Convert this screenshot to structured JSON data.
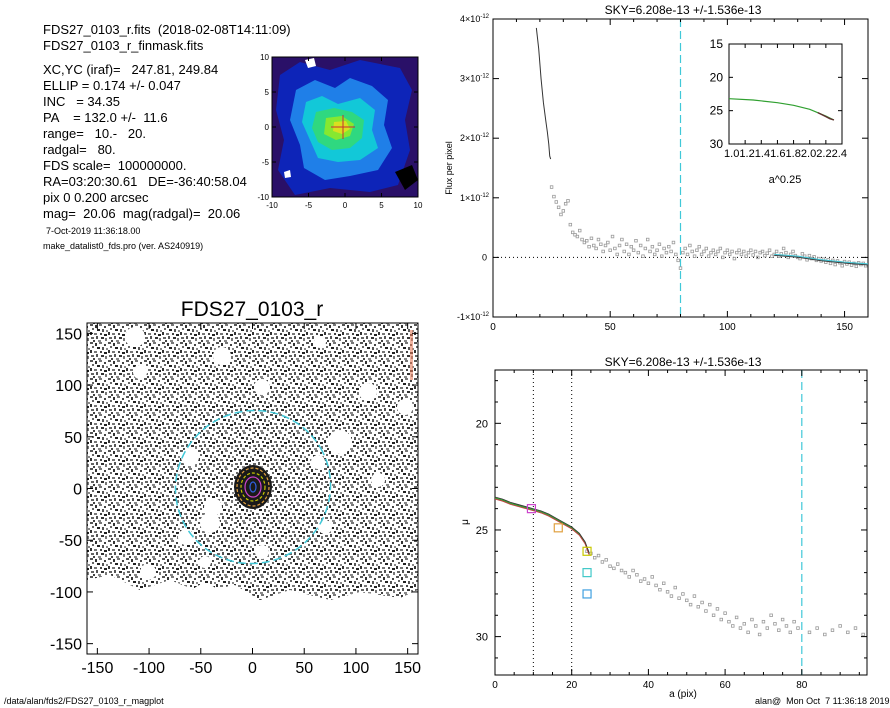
{
  "header": {
    "lines": [
      "FDS27_0103_r.fits  (2018-02-08T14:11:09)",
      "FDS27_0103_r_finmask.fits",
      "XC,YC (iraf)=   247.81, 249.84",
      "ELLIP = 0.174 +/- 0.047",
      "INC   = 34.35",
      "PA    = 132.0 +/-  11.6",
      "range=   10.-   20.",
      "radgal=   80.",
      "FDS scale=  100000000.",
      "RA=03:20:30.61   DE=-36:40:58.04",
      "pix 0 0.200 arcsec",
      "mag=  20.06  mag(radgal)=  20.06"
    ],
    "date": "7-Oct-2019 11:36:18.00",
    "program": "make_datalist0_fds.pro (ver. AS240919)"
  },
  "footer": {
    "path": "/data/alan/fds2/FDS27_0103_r_magplot",
    "user": "alan@  Mon Oct  7 11:36:18 2019"
  },
  "chart_data": [
    {
      "id": "thumbnail",
      "type": "heatmap",
      "x_ticks": [
        "-10",
        "-5",
        "0",
        "5",
        "10"
      ],
      "y_ticks": [
        "-10",
        "-5",
        "0",
        "5",
        "10"
      ],
      "xlim": [
        -10,
        10
      ],
      "ylim": [
        -10,
        10
      ]
    },
    {
      "id": "mask_image",
      "type": "heatmap",
      "title": "FDS27_0103_r",
      "x_ticks": [
        "-150",
        "-100",
        "-50",
        "0",
        "50",
        "100",
        "150"
      ],
      "y_ticks": [
        "-150",
        "-100",
        "-50",
        "0",
        "50",
        "100",
        "150"
      ],
      "xlim": [
        -160,
        160
      ],
      "ylim": [
        -160,
        160
      ],
      "radgal_circle_radius": 80
    },
    {
      "id": "flux_profile",
      "type": "scatter",
      "title": "SKY=6.208e-13 +/-1.536e-13",
      "xlabel": "",
      "ylabel": "Flux per pixel",
      "xlim": [
        0,
        160
      ],
      "ylim": [
        -1e-12,
        4e-12
      ],
      "x_ticks": [
        "0",
        "50",
        "100",
        "150"
      ],
      "y_ticks": [
        {
          "mant": "4",
          "exp": "-12",
          "value": 4e-12
        },
        {
          "mant": "3",
          "exp": "-12",
          "value": 3e-12
        },
        {
          "mant": "2",
          "exp": "-12",
          "value": 2e-12
        },
        {
          "mant": "1",
          "exp": "-12",
          "value": 1e-12
        },
        {
          "mant": "0",
          "exp": "",
          "value": 0
        },
        {
          "mant": "-1",
          "exp": "-12",
          "value": -1e-12
        }
      ],
      "vline_x": 80,
      "line": [
        [
          18.5,
          3.85e-12
        ],
        [
          19.5,
          3.5e-12
        ],
        [
          20.5,
          3e-12
        ],
        [
          21.5,
          2.6e-12
        ],
        [
          22.5,
          2.3e-12
        ],
        [
          23.2,
          2.1e-12
        ],
        [
          23.8,
          1.9e-12
        ],
        [
          24.2,
          1.7e-12
        ],
        [
          24.6,
          1.65e-12
        ]
      ],
      "points": [
        [
          25,
          1.18e-12
        ],
        [
          26,
          1.02e-12
        ],
        [
          27,
          9.3e-13
        ],
        [
          28,
          8.4e-13
        ],
        [
          29,
          7.2e-13
        ],
        [
          30,
          7.8e-13
        ],
        [
          31,
          9e-13
        ],
        [
          32,
          9.5e-13
        ],
        [
          33,
          5.5e-13
        ],
        [
          34,
          4.2e-13
        ],
        [
          35,
          3.8e-13
        ],
        [
          36,
          3.5e-13
        ],
        [
          37,
          4.5e-13
        ],
        [
          38,
          3e-13
        ],
        [
          39,
          2.5e-13
        ],
        [
          40,
          2.8e-13
        ],
        [
          41,
          1.8e-13
        ],
        [
          42,
          3.2e-13
        ],
        [
          43,
          2e-13
        ],
        [
          44,
          1.5e-13
        ],
        [
          45,
          3e-13
        ],
        [
          46,
          2.2e-13
        ],
        [
          47,
          1e-13
        ],
        [
          48,
          2e-13
        ],
        [
          49,
          2.5e-13
        ],
        [
          50,
          1.2e-13
        ],
        [
          51,
          3.5e-13
        ],
        [
          52,
          1.5e-13
        ],
        [
          53,
          5e-14
        ],
        [
          54,
          2e-13
        ],
        [
          55,
          3e-13
        ],
        [
          56,
          1e-13
        ],
        [
          57,
          2.2e-13
        ],
        [
          58,
          5e-14
        ],
        [
          59,
          1.8e-13
        ],
        [
          60,
          1.2e-13
        ],
        [
          61,
          2.8e-13
        ],
        [
          62,
          8e-14
        ],
        [
          63,
          2e-13
        ],
        [
          64,
          2e-14
        ],
        [
          65,
          1.5e-13
        ],
        [
          66,
          3e-13
        ],
        [
          67,
          1e-13
        ],
        [
          68,
          1.8e-13
        ],
        [
          69,
          5e-14
        ],
        [
          70,
          1.2e-13
        ],
        [
          71,
          2.2e-13
        ],
        [
          72,
          2e-14
        ],
        [
          73,
          1.5e-13
        ],
        [
          74,
          8e-14
        ],
        [
          75,
          1.8e-13
        ],
        [
          76,
          1e-13
        ],
        [
          77,
          2.5e-13
        ],
        [
          78,
          5e-14
        ],
        [
          79,
          -5e-14
        ],
        [
          80,
          -1.8e-13
        ],
        [
          81,
          8e-14
        ],
        [
          82,
          1.5e-13
        ],
        [
          83,
          5e-14
        ],
        [
          84,
          2e-13
        ],
        [
          85,
          1e-13
        ],
        [
          86,
          2e-14
        ],
        [
          87,
          1.2e-13
        ],
        [
          88,
          1.8e-13
        ],
        [
          89,
          5e-14
        ],
        [
          90,
          1e-13
        ],
        [
          91,
          1.5e-13
        ],
        [
          92,
          2e-14
        ],
        [
          93,
          8e-14
        ],
        [
          94,
          1.2e-13
        ],
        [
          95,
          5e-14
        ],
        [
          96,
          1e-13
        ],
        [
          97,
          1.5e-13
        ],
        [
          98,
          0.0
        ],
        [
          99,
          8e-14
        ],
        [
          100,
          1.2e-13
        ],
        [
          101,
          5e-14
        ],
        [
          102,
          1e-13
        ],
        [
          103,
          -2e-14
        ],
        [
          104,
          8e-14
        ],
        [
          105,
          1.2e-13
        ],
        [
          106,
          5e-14
        ],
        [
          107,
          1e-13
        ],
        [
          108,
          2e-14
        ],
        [
          109,
          8e-14
        ],
        [
          110,
          1.2e-13
        ],
        [
          111,
          4e-14
        ],
        [
          112,
          1e-13
        ],
        [
          113,
          0.0
        ],
        [
          114,
          8e-14
        ],
        [
          115,
          1e-13
        ],
        [
          116,
          3e-14
        ],
        [
          117,
          7e-14
        ],
        [
          118,
          1.2e-13
        ],
        [
          119,
          2e-14
        ],
        [
          120,
          5e-14
        ],
        [
          121,
          1e-13
        ],
        [
          122,
          2e-14
        ],
        [
          123,
          6e-14
        ],
        [
          124,
          1.5e-13
        ],
        [
          125,
          8e-14
        ],
        [
          126,
          0.0
        ],
        [
          127,
          5e-14
        ],
        [
          128,
          1e-13
        ],
        [
          129,
          3e-14
        ],
        [
          130,
          0.0
        ],
        [
          131,
          -2e-14
        ],
        [
          132,
          6e-14
        ],
        [
          133,
          2e-14
        ],
        [
          134,
          -4e-14
        ],
        [
          135,
          3e-14
        ],
        [
          136,
          -2e-14
        ],
        [
          137,
          1e-14
        ],
        [
          138,
          -5e-14
        ],
        [
          139,
          -2e-14
        ],
        [
          140,
          -6e-14
        ],
        [
          141,
          -3e-14
        ],
        [
          142,
          -8e-14
        ],
        [
          143,
          -4e-14
        ],
        [
          144,
          -1e-13
        ],
        [
          145,
          -5e-14
        ],
        [
          146,
          -1.2e-13
        ],
        [
          147,
          -6e-14
        ],
        [
          148,
          -9e-14
        ],
        [
          149,
          -1.4e-13
        ],
        [
          150,
          -7e-14
        ],
        [
          151,
          -1.1e-13
        ],
        [
          152,
          -8e-14
        ],
        [
          153,
          -1.3e-13
        ],
        [
          154,
          -1e-13
        ],
        [
          155,
          -1.5e-13
        ],
        [
          156,
          -9e-14
        ],
        [
          157,
          -1.2e-13
        ],
        [
          158,
          -1e-13
        ],
        [
          159,
          -1.4e-13
        ]
      ],
      "fit_line": [
        [
          120,
          5e-14
        ],
        [
          130,
          2e-14
        ],
        [
          140,
          -4e-14
        ],
        [
          150,
          -8e-14
        ],
        [
          160,
          -1.1e-13
        ]
      ]
    },
    {
      "id": "inset",
      "type": "line",
      "xlabel": "a^0.25",
      "ylabel": "",
      "xlim": [
        1.0,
        2.4
      ],
      "ylim": [
        30,
        15
      ],
      "x_ticks": [
        "1.0",
        "1.2",
        "1.4",
        "1.6",
        "1.8",
        "2.0",
        "2.2",
        "2.4"
      ],
      "y_ticks": [
        "15",
        "20",
        "25",
        "30"
      ],
      "green": [
        [
          1.0,
          23.2
        ],
        [
          1.3,
          23.4
        ],
        [
          1.6,
          23.8
        ],
        [
          1.8,
          24.2
        ],
        [
          2.0,
          24.8
        ],
        [
          2.1,
          25.3
        ],
        [
          2.2,
          25.8
        ],
        [
          2.3,
          26.4
        ]
      ],
      "dark": [
        [
          2.1,
          25.3
        ],
        [
          2.15,
          25.6
        ],
        [
          2.2,
          25.9
        ],
        [
          2.25,
          26.2
        ],
        [
          2.3,
          26.4
        ]
      ]
    },
    {
      "id": "mu_profile",
      "type": "scatter",
      "title": "SKY=6.208e-13 +/-1.536e-13",
      "xlabel": "a (pix)",
      "ylabel": "μ",
      "xlim": [
        0,
        97
      ],
      "ylim": [
        31.8,
        17.5
      ],
      "x_ticks": [
        "0",
        "20",
        "40",
        "60",
        "80"
      ],
      "y_ticks": [
        "20",
        "25",
        "30"
      ],
      "vlines_dotted": [
        10,
        20
      ],
      "vline_dashed": 80,
      "profile": [
        [
          0,
          23.5
        ],
        [
          2,
          23.6
        ],
        [
          4,
          23.75
        ],
        [
          6,
          23.85
        ],
        [
          8,
          23.95
        ],
        [
          10,
          24.05
        ],
        [
          12,
          24.15
        ],
        [
          14,
          24.3
        ],
        [
          16,
          24.5
        ],
        [
          18,
          24.7
        ],
        [
          20,
          24.9
        ],
        [
          22,
          25.2
        ],
        [
          23.5,
          25.6
        ],
        [
          24.5,
          26.1
        ]
      ],
      "points": [
        [
          24,
          26.0
        ],
        [
          25,
          26.1
        ],
        [
          26,
          26.3
        ],
        [
          27,
          26.2
        ],
        [
          28,
          26.5
        ],
        [
          29,
          26.4
        ],
        [
          30,
          26.7
        ],
        [
          31,
          26.8
        ],
        [
          32,
          26.6
        ],
        [
          33,
          26.9
        ],
        [
          34,
          27.0
        ],
        [
          35,
          27.2
        ],
        [
          36,
          26.9
        ],
        [
          37,
          27.1
        ],
        [
          38,
          27.4
        ],
        [
          39,
          27.3
        ],
        [
          40,
          27.5
        ],
        [
          41,
          27.2
        ],
        [
          42,
          27.6
        ],
        [
          43,
          27.8
        ],
        [
          44,
          27.5
        ],
        [
          45,
          27.9
        ],
        [
          46,
          28.1
        ],
        [
          47,
          27.7
        ],
        [
          48,
          28.2
        ],
        [
          49,
          28.0
        ],
        [
          50,
          28.3
        ],
        [
          51,
          28.5
        ],
        [
          52,
          28.1
        ],
        [
          53,
          28.6
        ],
        [
          54,
          28.4
        ],
        [
          55,
          28.8
        ],
        [
          56,
          28.5
        ],
        [
          57,
          29.0
        ],
        [
          58,
          28.7
        ],
        [
          59,
          29.2
        ],
        [
          60,
          28.9
        ],
        [
          61,
          29.3
        ],
        [
          62,
          29.5
        ],
        [
          63,
          29.1
        ],
        [
          64,
          29.6
        ],
        [
          65,
          29.4
        ],
        [
          66,
          29.8
        ],
        [
          67,
          29.2
        ],
        [
          68,
          29.5
        ],
        [
          69,
          29.9
        ],
        [
          70,
          29.3
        ],
        [
          71,
          29.6
        ],
        [
          72,
          29.0
        ],
        [
          73,
          29.4
        ],
        [
          74,
          29.7
        ],
        [
          75,
          29.2
        ],
        [
          76,
          29.5
        ],
        [
          77,
          29.8
        ],
        [
          78,
          29.3
        ],
        [
          79,
          29.6
        ],
        [
          82,
          29.8
        ],
        [
          84,
          29.6
        ],
        [
          86,
          29.9
        ],
        [
          88,
          29.7
        ],
        [
          90,
          29.5
        ],
        [
          92,
          29.8
        ],
        [
          94,
          29.6
        ],
        [
          96,
          29.9
        ]
      ],
      "squares": [
        {
          "x": 9.5,
          "y": 24.0,
          "color": "#cc44cc"
        },
        {
          "x": 16.5,
          "y": 24.9,
          "color": "#e0a040"
        },
        {
          "x": 24,
          "y": 26.0,
          "color": "#c8c800"
        },
        {
          "x": 24,
          "y": 27.0,
          "color": "#40c8c8"
        },
        {
          "x": 24,
          "y": 28.0,
          "color": "#40a0e0"
        }
      ]
    }
  ]
}
